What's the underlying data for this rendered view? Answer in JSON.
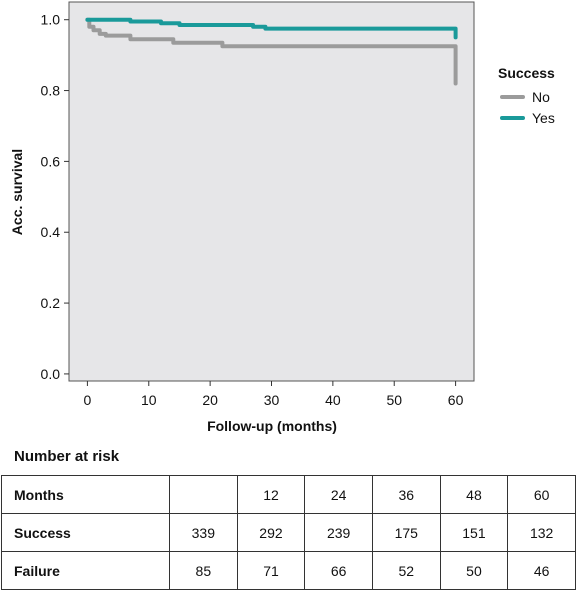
{
  "chart_data": {
    "type": "line",
    "xlabel": "Follow-up (months)",
    "ylabel": "Acc. survival",
    "xlim": [
      -3,
      63
    ],
    "ylim": [
      -0.02,
      1.05
    ],
    "x_ticks": [
      "0",
      "10",
      "20",
      "30",
      "40",
      "50",
      "60"
    ],
    "y_ticks": [
      "0.0",
      "0.2",
      "0.4",
      "0.6",
      "0.8",
      "1.0"
    ],
    "background": "#e6e6e8",
    "grid": false,
    "legend": {
      "title": "Success",
      "placement": "right"
    },
    "series": [
      {
        "name": "No",
        "color": "#9b9b9b",
        "points": [
          [
            0,
            1.0
          ],
          [
            0.3,
            1.0
          ],
          [
            0.3,
            0.98
          ],
          [
            1,
            0.98
          ],
          [
            1,
            0.97
          ],
          [
            2,
            0.97
          ],
          [
            2,
            0.96
          ],
          [
            3,
            0.96
          ],
          [
            3,
            0.955
          ],
          [
            7,
            0.955
          ],
          [
            7,
            0.945
          ],
          [
            14,
            0.945
          ],
          [
            14,
            0.935
          ],
          [
            22,
            0.935
          ],
          [
            22,
            0.925
          ],
          [
            60,
            0.925
          ],
          [
            60,
            0.82
          ]
        ]
      },
      {
        "name": "Yes",
        "color": "#1a9a9a",
        "points": [
          [
            0,
            1.0
          ],
          [
            7,
            1.0
          ],
          [
            7,
            0.995
          ],
          [
            12,
            0.995
          ],
          [
            12,
            0.99
          ],
          [
            15,
            0.99
          ],
          [
            15,
            0.985
          ],
          [
            27,
            0.985
          ],
          [
            27,
            0.98
          ],
          [
            29,
            0.98
          ],
          [
            29,
            0.975
          ],
          [
            60,
            0.975
          ],
          [
            60,
            0.95
          ]
        ]
      }
    ]
  },
  "risk_table": {
    "title": "Number at risk",
    "header_label": "Months",
    "columns": [
      "",
      "12",
      "24",
      "36",
      "48",
      "60"
    ],
    "rows": [
      {
        "label": "Success",
        "values": [
          "339",
          "292",
          "239",
          "175",
          "151",
          "132"
        ]
      },
      {
        "label": "Failure",
        "values": [
          "85",
          "71",
          "66",
          "52",
          "50",
          "46"
        ]
      }
    ]
  }
}
